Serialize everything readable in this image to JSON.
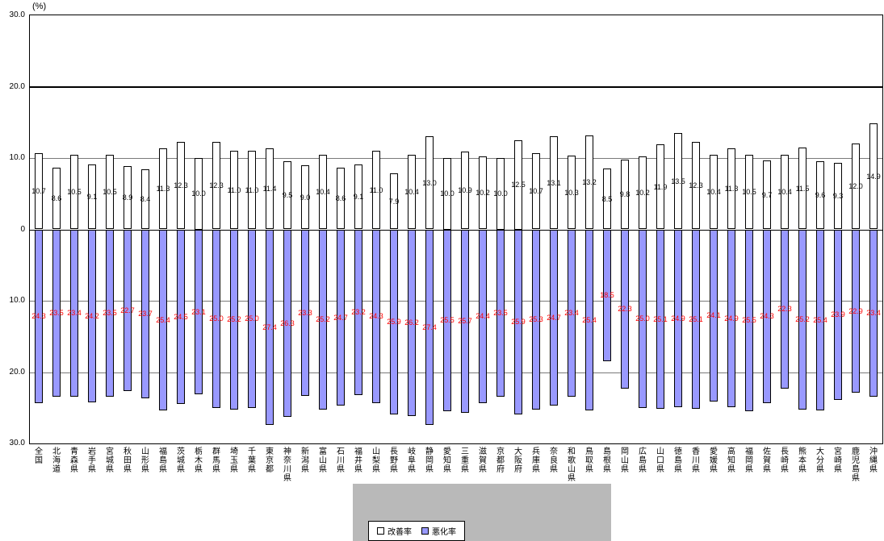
{
  "chart_data": {
    "type": "bar",
    "title": "",
    "unit_label": "(%)",
    "ylim": [
      -30,
      30
    ],
    "grid": true,
    "legend_position": "bottom-center",
    "note": "paired bars: improvement rate (white, up) and worsening rate (blue, down, shown as absolute values)",
    "y_ticks": [
      {
        "value": 30,
        "label": "30.0"
      },
      {
        "value": 20,
        "label": "20.0"
      },
      {
        "value": 10,
        "label": "10.0"
      },
      {
        "value": 0,
        "label": "0"
      },
      {
        "value": -10,
        "label": "10.0"
      },
      {
        "value": -20,
        "label": "20.0"
      },
      {
        "value": -30,
        "label": "30.0"
      }
    ],
    "categories": [
      "全国",
      "北海道",
      "青森県",
      "岩手県",
      "宮城県",
      "秋田県",
      "山形県",
      "福島県",
      "茨城県",
      "栃木県",
      "群馬県",
      "埼玉県",
      "千葉県",
      "東京都",
      "神奈川県",
      "新潟県",
      "富山県",
      "石川県",
      "福井県",
      "山梨県",
      "長野県",
      "岐阜県",
      "静岡県",
      "愛知県",
      "三重県",
      "滋賀県",
      "京都府",
      "大阪府",
      "兵庫県",
      "奈良県",
      "和歌山県",
      "鳥取県",
      "島根県",
      "岡山県",
      "広島県",
      "山口県",
      "徳島県",
      "香川県",
      "愛媛県",
      "高知県",
      "福岡県",
      "佐賀県",
      "長崎県",
      "熊本県",
      "大分県",
      "宮崎県",
      "鹿児島県",
      "沖縄県"
    ],
    "series": [
      {
        "name": "改善率",
        "direction": "up",
        "color": "#ffffff",
        "label_color": "#000000",
        "values": [
          10.7,
          8.6,
          10.5,
          9.1,
          10.5,
          8.9,
          8.4,
          11.3,
          12.3,
          10.0,
          12.3,
          11.0,
          11.0,
          11.4,
          9.5,
          9.0,
          10.4,
          8.6,
          9.1,
          11.0,
          7.9,
          10.4,
          13.0,
          10.0,
          10.9,
          10.2,
          10.0,
          12.5,
          10.7,
          13.1,
          10.3,
          13.2,
          8.5,
          9.8,
          10.2,
          11.9,
          13.5,
          12.3,
          10.4,
          11.3,
          10.5,
          9.7,
          10.4,
          11.5,
          9.6,
          9.3,
          12.0,
          14.9
        ]
      },
      {
        "name": "悪化率",
        "direction": "down",
        "color": "#9999ff",
        "label_color": "#ff0000",
        "values": [
          24.3,
          23.5,
          23.4,
          24.2,
          23.5,
          22.7,
          23.7,
          25.4,
          24.5,
          23.1,
          25.0,
          25.2,
          25.0,
          27.4,
          26.3,
          23.3,
          25.2,
          24.7,
          23.2,
          24.3,
          25.9,
          26.2,
          27.4,
          25.5,
          25.7,
          24.4,
          23.5,
          25.9,
          25.3,
          24.7,
          23.4,
          25.4,
          18.5,
          22.3,
          25.0,
          25.1,
          24.9,
          25.1,
          24.1,
          24.9,
          25.5,
          24.3,
          22.3,
          25.2,
          25.4,
          23.9,
          22.9,
          23.4
        ]
      }
    ]
  }
}
